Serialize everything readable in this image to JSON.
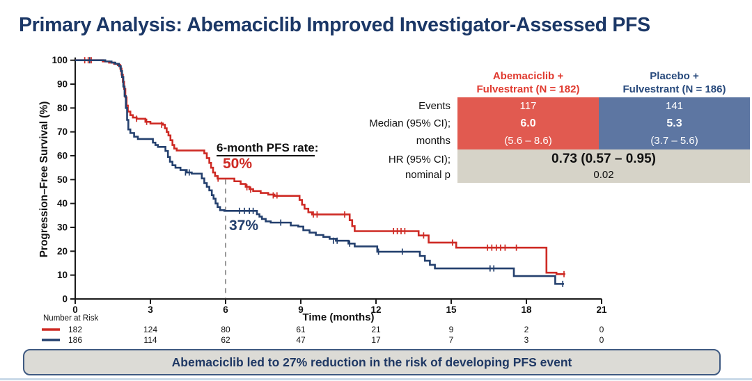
{
  "title": {
    "text": "Primary Analysis: Abemaciclib Improved Investigator-Assessed PFS",
    "color": "#1b3766"
  },
  "annotation": {
    "heading_underlined": "6-month PFS rate",
    "heading_suffix": ":",
    "red_value": "50%",
    "blue_value": "37%"
  },
  "results_table": {
    "row_labels": [
      "Events",
      "Median (95% CI);",
      "months",
      "HR (95% CI);",
      "nominal p"
    ],
    "columns": [
      {
        "header_line1": "Abemaciclib +",
        "header_line2": "Fulvestrant (N = 182)",
        "header_color": "#e03a2f",
        "fill": "#e15a50",
        "events": "117",
        "median": "6.0",
        "ci": "(5.6 – 8.6)"
      },
      {
        "header_line1": "Placebo +",
        "header_line2": "Fulvestrant (N = 186)",
        "header_color": "#27497c",
        "fill": "#5d76a2",
        "events": "141",
        "median": "5.3",
        "ci": "(3.7 – 5.6)"
      }
    ],
    "hr_value": "0.73 (0.57 – 0.95)",
    "p_value": "0.02",
    "hr_fill": "#d6d3c8"
  },
  "banner": {
    "text": "Abemaciclib led to 27% reduction in the risk of developing PFS event"
  },
  "chart_data": {
    "type": "line",
    "subtype": "kaplan-meier-step",
    "xlabel": "Time (months)",
    "ylabel": "Progression–Free Survival (%)",
    "xlim": [
      0,
      21
    ],
    "ylim": [
      0,
      100
    ],
    "x_ticks": [
      0,
      3,
      6,
      9,
      12,
      15,
      18,
      21
    ],
    "y_ticks": [
      0,
      10,
      20,
      30,
      40,
      50,
      60,
      70,
      80,
      90,
      100
    ],
    "grid": false,
    "reference_line": {
      "x": 6,
      "from_percent": 50,
      "style": "dashed",
      "color": "#999999"
    },
    "number_at_risk_label": "Number at Risk",
    "at_risk_times": [
      0,
      3,
      6,
      9,
      12,
      15,
      18,
      21
    ],
    "series": [
      {
        "name": "Abemaciclib + Fulvestrant",
        "color": "#ce2a24",
        "six_month_pfs_rate": "50%",
        "at_risk": [
          182,
          124,
          80,
          61,
          21,
          9,
          2,
          0
        ],
        "end_month": 19.55,
        "steps": [
          [
            0,
            100
          ],
          [
            1.1,
            99.5
          ],
          [
            1.35,
            99
          ],
          [
            1.55,
            98.5
          ],
          [
            1.7,
            98
          ],
          [
            1.8,
            96.5
          ],
          [
            1.85,
            94
          ],
          [
            1.9,
            91
          ],
          [
            1.95,
            88
          ],
          [
            2.0,
            84.5
          ],
          [
            2.05,
            81
          ],
          [
            2.1,
            78.5
          ],
          [
            2.2,
            77
          ],
          [
            2.3,
            76
          ],
          [
            2.45,
            75.5
          ],
          [
            2.8,
            74.2
          ],
          [
            3.0,
            73.5
          ],
          [
            3.5,
            73
          ],
          [
            3.58,
            71.5
          ],
          [
            3.65,
            70
          ],
          [
            3.72,
            68.5
          ],
          [
            3.8,
            66.5
          ],
          [
            3.88,
            64.5
          ],
          [
            3.95,
            63
          ],
          [
            4.05,
            62.2
          ],
          [
            5.15,
            61
          ],
          [
            5.25,
            59
          ],
          [
            5.35,
            57
          ],
          [
            5.42,
            55
          ],
          [
            5.5,
            53
          ],
          [
            5.58,
            51.5
          ],
          [
            5.68,
            50.4
          ],
          [
            6.35,
            49.3
          ],
          [
            6.6,
            48.2
          ],
          [
            6.8,
            47
          ],
          [
            6.95,
            46
          ],
          [
            7.1,
            45.2
          ],
          [
            7.4,
            44.4
          ],
          [
            7.7,
            43.7
          ],
          [
            7.95,
            43.2
          ],
          [
            8.95,
            41.5
          ],
          [
            9.05,
            39.5
          ],
          [
            9.15,
            37.8
          ],
          [
            9.3,
            36.3
          ],
          [
            9.45,
            35.4
          ],
          [
            10.95,
            33
          ],
          [
            11.05,
            30.5
          ],
          [
            11.15,
            28.4
          ],
          [
            13.7,
            26.6
          ],
          [
            14.1,
            23.6
          ],
          [
            15.2,
            21.5
          ],
          [
            18.8,
            11
          ],
          [
            19.2,
            10.4
          ]
        ],
        "censors": [
          [
            0.38,
            100
          ],
          [
            0.52,
            100
          ],
          [
            0.64,
            100
          ],
          [
            2.45,
            75.5
          ],
          [
            2.85,
            74.2
          ],
          [
            3.45,
            73
          ],
          [
            5.7,
            50.4
          ],
          [
            6.85,
            46.8
          ],
          [
            7.0,
            45.8
          ],
          [
            7.9,
            43.4
          ],
          [
            8.05,
            43.4
          ],
          [
            9.5,
            35.4
          ],
          [
            9.65,
            35.4
          ],
          [
            10.75,
            35.4
          ],
          [
            12.7,
            28.4
          ],
          [
            12.85,
            28.4
          ],
          [
            13.0,
            28.4
          ],
          [
            13.15,
            28.4
          ],
          [
            13.9,
            26.6
          ],
          [
            15.05,
            23.6
          ],
          [
            16.45,
            21.5
          ],
          [
            16.62,
            21.5
          ],
          [
            16.8,
            21.5
          ],
          [
            16.97,
            21.5
          ],
          [
            17.15,
            21.5
          ],
          [
            17.6,
            21.5
          ],
          [
            19.5,
            10.4
          ]
        ]
      },
      {
        "name": "Placebo + Fulvestrant",
        "color": "#24406e",
        "six_month_pfs_rate": "37%",
        "at_risk": [
          186,
          114,
          62,
          47,
          17,
          7,
          3,
          0
        ],
        "end_month": 19.5,
        "steps": [
          [
            0,
            100
          ],
          [
            1.2,
            99.5
          ],
          [
            1.45,
            99
          ],
          [
            1.6,
            98.5
          ],
          [
            1.75,
            97.5
          ],
          [
            1.82,
            95.5
          ],
          [
            1.87,
            93
          ],
          [
            1.92,
            89
          ],
          [
            1.97,
            85
          ],
          [
            2.02,
            80
          ],
          [
            2.07,
            75
          ],
          [
            2.12,
            71
          ],
          [
            2.2,
            69.5
          ],
          [
            2.35,
            68
          ],
          [
            2.5,
            67
          ],
          [
            3.1,
            65.5
          ],
          [
            3.2,
            64.5
          ],
          [
            3.3,
            63.7
          ],
          [
            3.6,
            62
          ],
          [
            3.7,
            59.5
          ],
          [
            3.78,
            57.5
          ],
          [
            3.88,
            56
          ],
          [
            4.0,
            55
          ],
          [
            4.2,
            54
          ],
          [
            4.45,
            53
          ],
          [
            4.65,
            52.5
          ],
          [
            5.05,
            50.5
          ],
          [
            5.15,
            48.5
          ],
          [
            5.25,
            47
          ],
          [
            5.35,
            45.5
          ],
          [
            5.45,
            43.5
          ],
          [
            5.52,
            42
          ],
          [
            5.6,
            40
          ],
          [
            5.68,
            38.5
          ],
          [
            5.78,
            37.2
          ],
          [
            5.95,
            36.9
          ],
          [
            7.25,
            35.5
          ],
          [
            7.35,
            34.5
          ],
          [
            7.45,
            33.5
          ],
          [
            7.6,
            32.5
          ],
          [
            7.8,
            32
          ],
          [
            8.6,
            30.8
          ],
          [
            8.9,
            30.3
          ],
          [
            9.1,
            28.8
          ],
          [
            9.35,
            27.8
          ],
          [
            9.6,
            26.8
          ],
          [
            9.9,
            26
          ],
          [
            10.15,
            25.2
          ],
          [
            10.4,
            24.4
          ],
          [
            10.9,
            23.2
          ],
          [
            11.15,
            22
          ],
          [
            12.05,
            19.8
          ],
          [
            13.75,
            18
          ],
          [
            13.95,
            16
          ],
          [
            14.15,
            14.3
          ],
          [
            14.35,
            12.8
          ],
          [
            17.5,
            9.6
          ],
          [
            19.15,
            6.3
          ]
        ],
        "censors": [
          [
            0.58,
            100
          ],
          [
            4.4,
            53
          ],
          [
            4.55,
            53
          ],
          [
            6.55,
            36.9
          ],
          [
            6.75,
            36.9
          ],
          [
            6.95,
            36.9
          ],
          [
            7.1,
            36.9
          ],
          [
            8.2,
            32
          ],
          [
            10.3,
            24.4
          ],
          [
            10.45,
            24.4
          ],
          [
            10.95,
            23.2
          ],
          [
            12.1,
            19.8
          ],
          [
            13.05,
            19.8
          ],
          [
            16.55,
            12.8
          ],
          [
            16.7,
            12.8
          ],
          [
            19.45,
            6.3
          ]
        ]
      }
    ]
  }
}
